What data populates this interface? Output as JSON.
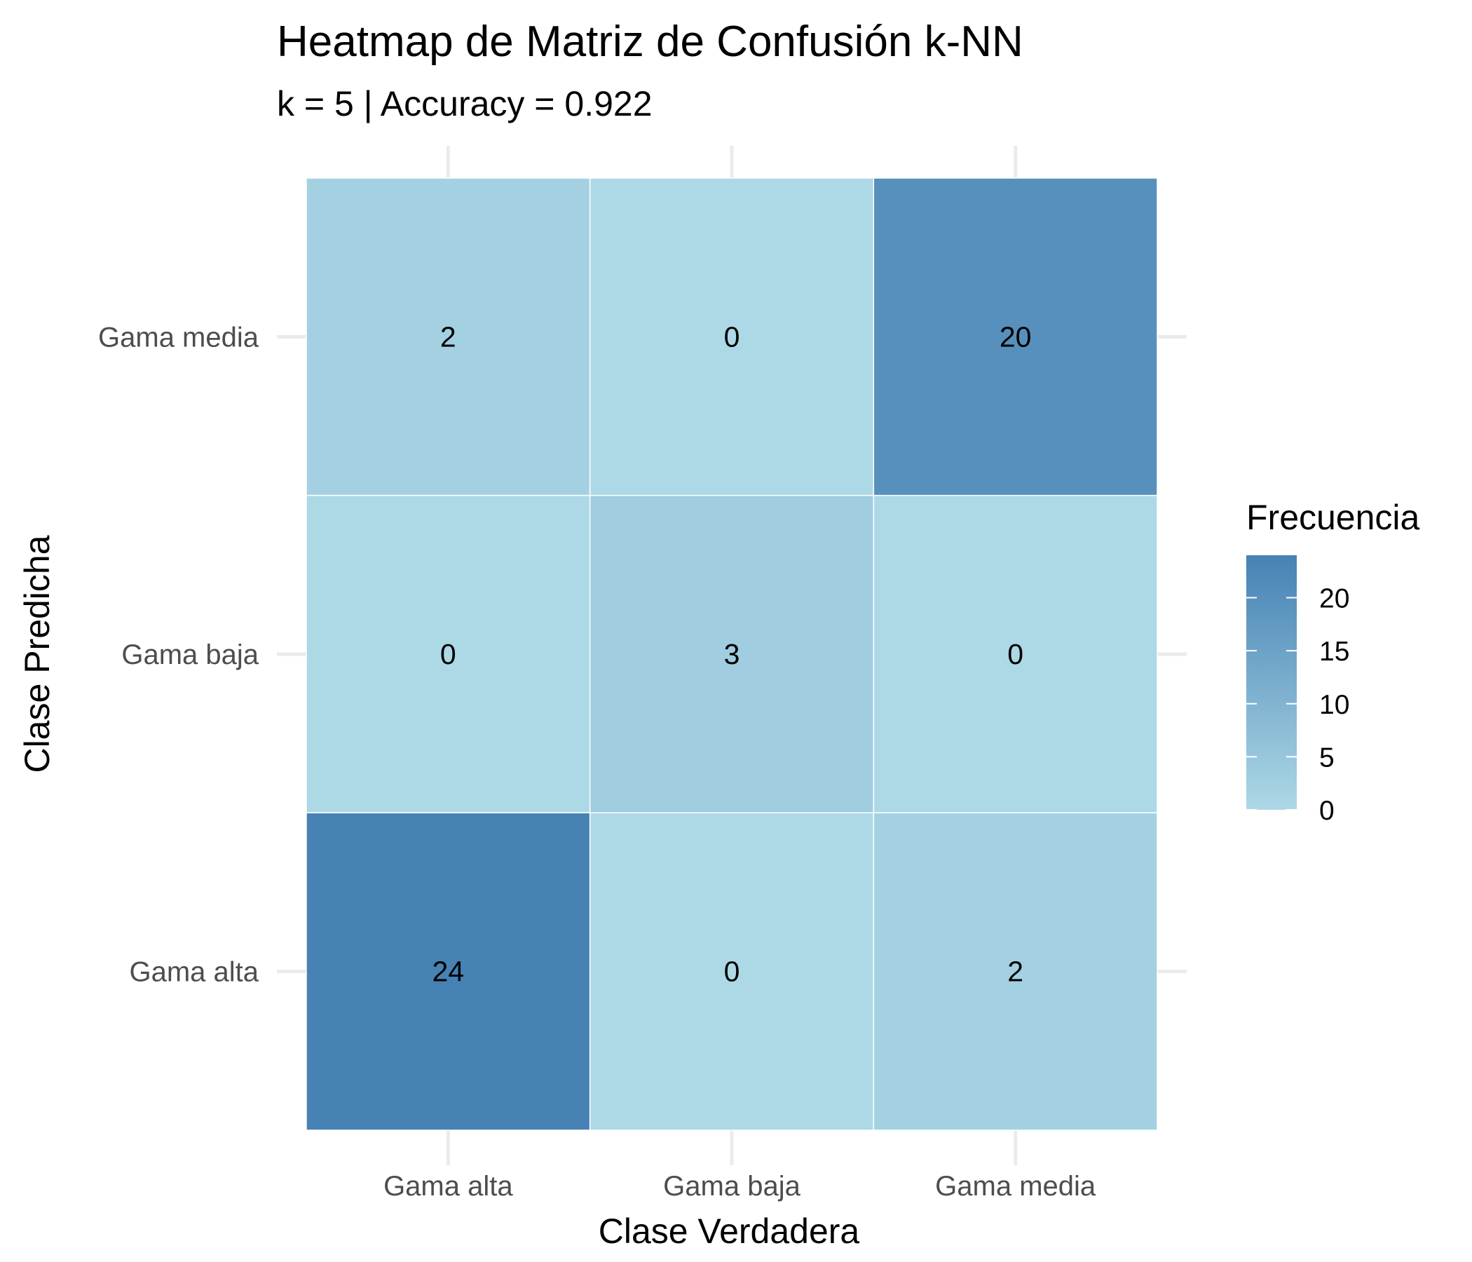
{
  "chart_data": {
    "type": "heatmap",
    "title": "Heatmap de Matriz de Confusión k-NN",
    "subtitle": "k = 5 | Accuracy = 0.922",
    "xlabel": "Clase Verdadera",
    "ylabel": "Clase Predicha",
    "x_categories": [
      "Gama alta",
      "Gama baja",
      "Gama media"
    ],
    "y_categories": [
      "Gama alta",
      "Gama baja",
      "Gama media"
    ],
    "cells": [
      {
        "x": "Gama alta",
        "y": "Gama media",
        "value": 2
      },
      {
        "x": "Gama baja",
        "y": "Gama media",
        "value": 0
      },
      {
        "x": "Gama media",
        "y": "Gama media",
        "value": 20
      },
      {
        "x": "Gama alta",
        "y": "Gama baja",
        "value": 0
      },
      {
        "x": "Gama baja",
        "y": "Gama baja",
        "value": 3
      },
      {
        "x": "Gama media",
        "y": "Gama baja",
        "value": 0
      },
      {
        "x": "Gama alta",
        "y": "Gama alta",
        "value": 24
      },
      {
        "x": "Gama baja",
        "y": "Gama alta",
        "value": 0
      },
      {
        "x": "Gama media",
        "y": "Gama alta",
        "value": 2
      }
    ],
    "legend": {
      "title": "Frecuencia",
      "placement": "right",
      "min": 0,
      "max": 24,
      "ticks": [
        0,
        5,
        10,
        15,
        20
      ]
    },
    "colors": {
      "low": "#add8e6",
      "high": "#4682b4"
    },
    "grid": true
  }
}
